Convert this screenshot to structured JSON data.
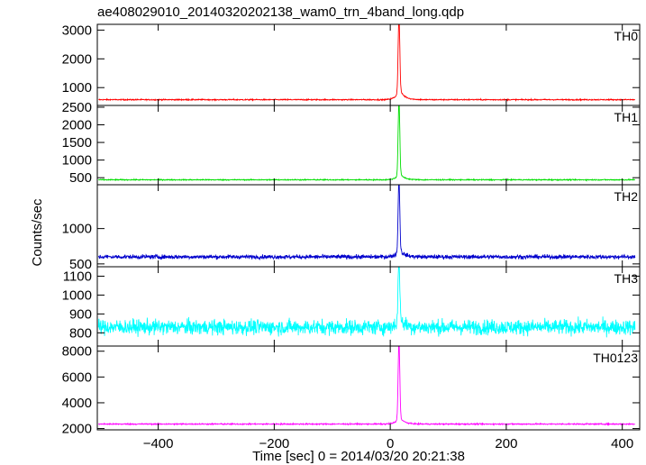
{
  "title": "ae408029010_20140320202138_wam0_trn_4band_long.qdp",
  "xlabel": "Time [sec] 0 = 2014/03/20 20:21:38",
  "ylabel": "Counts/sec",
  "chart_data": {
    "type": "line",
    "title": "ae408029010_20140320202138_wam0_trn_4band_long.qdp",
    "xlabel": "Time [sec] 0 = 2014/03/20 20:21:38",
    "ylabel": "Counts/sec",
    "xlim": [
      -505,
      430
    ],
    "xticks": [
      -400,
      -200,
      0,
      200,
      400
    ],
    "grid": false,
    "panels": [
      {
        "name": "TH0",
        "color": "#ff0000",
        "ylim": [
          380,
          3200
        ],
        "yticks": [
          1000,
          2000,
          3000
        ],
        "baseline": 580,
        "noise": 18,
        "peak_x": 15,
        "peak": 3200,
        "shoulder": 1100
      },
      {
        "name": "TH1",
        "color": "#00dd00",
        "ylim": [
          300,
          2550
        ],
        "yticks": [
          500,
          1000,
          1500,
          2000,
          2500
        ],
        "baseline": 440,
        "noise": 14,
        "peak_x": 15,
        "peak": 2550,
        "shoulder": 700
      },
      {
        "name": "TH2",
        "color": "#0000cc",
        "ylim": [
          460,
          1620
        ],
        "yticks": [
          500,
          1000
        ],
        "baseline": 600,
        "noise": 28,
        "peak_x": 15,
        "peak": 1620,
        "shoulder": 750
      },
      {
        "name": "TH3",
        "color": "#00ffff",
        "ylim": [
          730,
          1150
        ],
        "yticks": [
          800,
          900,
          1000,
          1100
        ],
        "baseline": 830,
        "noise": 38,
        "peak_x": 15,
        "peak": 1150,
        "shoulder": 900
      },
      {
        "name": "TH0123",
        "color": "#ff00ff",
        "ylim": [
          1900,
          8400
        ],
        "yticks": [
          2000,
          4000,
          6000,
          8000
        ],
        "baseline": 2350,
        "noise": 45,
        "peak_x": 15,
        "peak": 8400,
        "shoulder": 3100
      }
    ]
  }
}
